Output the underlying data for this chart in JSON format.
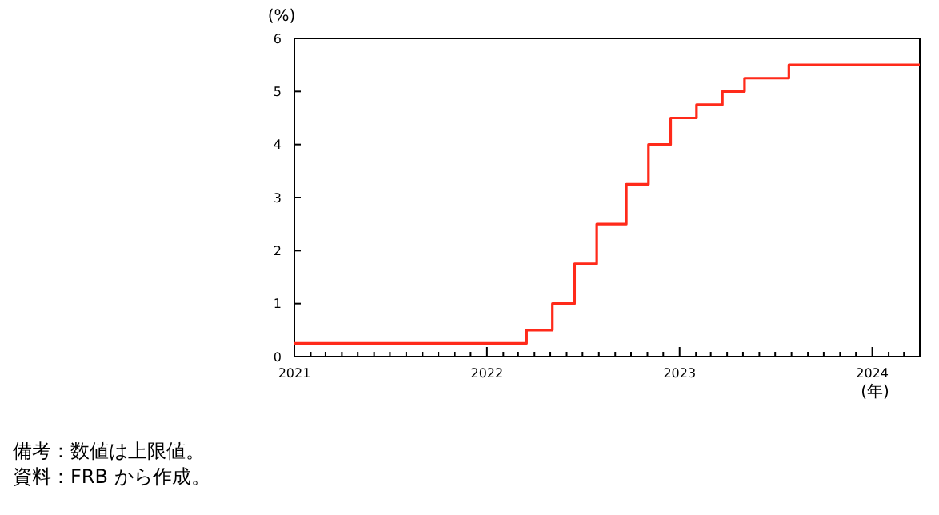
{
  "chart_data": {
    "type": "step",
    "xlabel": "(年)",
    "ylabel": "(%)",
    "annotations": [
      "備考：数値は上限値。",
      "資料：FRB から作成。"
    ],
    "series": [
      {
        "color": "#ff2a1a",
        "x": [
          "2021-01-01",
          "2022-03-17",
          "2022-05-05",
          "2022-06-16",
          "2022-07-28",
          "2022-09-22",
          "2022-11-03",
          "2022-12-15",
          "2023-02-02",
          "2023-03-23",
          "2023-05-04",
          "2023-07-27",
          "2024-03-31"
        ],
        "values": [
          0.25,
          0.5,
          1.0,
          1.75,
          2.5,
          3.25,
          4.0,
          4.5,
          4.75,
          5.0,
          5.25,
          5.5,
          5.5
        ]
      }
    ],
    "xlim": [
      "2021-01-01",
      "2024-03-31"
    ],
    "xticks": [
      "2021",
      {
        "value": "2021-02",
        "label": null
      },
      {
        "value": "2021-03",
        "label": null
      },
      {
        "value": "2021-04",
        "label": null
      },
      {
        "value": "2021-05",
        "label": null
      },
      {
        "value": "2021-06",
        "label": null
      },
      {
        "value": "2021-07",
        "label": null
      },
      {
        "value": "2021-08",
        "label": null
      },
      {
        "value": "2021-09",
        "label": null
      },
      {
        "value": "2021-10",
        "label": null
      },
      {
        "value": "2021-11",
        "label": null
      },
      {
        "value": "2021-12",
        "label": null
      },
      "2022",
      {
        "value": "2022-02",
        "label": null
      },
      {
        "value": "2022-03",
        "label": null
      },
      {
        "value": "2022-04",
        "label": null
      },
      {
        "value": "2022-05",
        "label": null
      },
      {
        "value": "2022-06",
        "label": null
      },
      {
        "value": "2022-07",
        "label": null
      },
      {
        "value": "2022-08",
        "label": null
      },
      {
        "value": "2022-09",
        "label": null
      },
      {
        "value": "2022-10",
        "label": null
      },
      {
        "value": "2022-11",
        "label": null
      },
      {
        "value": "2022-12",
        "label": null
      },
      "2023",
      {
        "value": "2023-02",
        "label": null
      },
      {
        "value": "2023-03",
        "label": null
      },
      {
        "value": "2023-04",
        "label": null
      },
      {
        "value": "2023-05",
        "label": null
      },
      {
        "value": "2023-06",
        "label": null
      },
      {
        "value": "2023-07",
        "label": null
      },
      {
        "value": "2023-08",
        "label": null
      },
      {
        "value": "2023-09",
        "label": null
      },
      {
        "value": "2023-10",
        "label": null
      },
      {
        "value": "2023-11",
        "label": null
      },
      {
        "value": "2023-12",
        "label": null
      },
      "2024",
      {
        "value": "2024-02",
        "label": null
      },
      {
        "value": "2024-03",
        "label": null
      }
    ],
    "ylim": [
      0,
      6
    ],
    "yticks": [
      0,
      1,
      2,
      3,
      4,
      5,
      6
    ],
    "grid": false,
    "line_style": "solid"
  }
}
